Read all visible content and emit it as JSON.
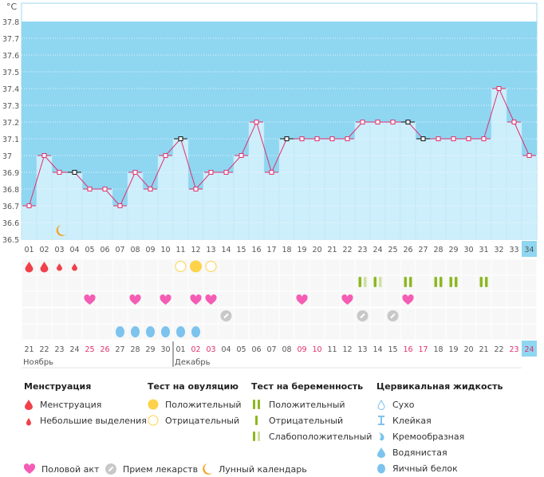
{
  "chart_data": {
    "type": "line",
    "unit": "°C",
    "ylim": [
      36.5,
      37.8
    ],
    "yticks": [
      "36.5",
      "36.6",
      "36.7",
      "36.8",
      "36.9",
      "37",
      "37.1",
      "37.2",
      "37.3",
      "37.4",
      "37.5",
      "37.6",
      "37.7",
      "37.8"
    ],
    "cycle_days": [
      "01",
      "02",
      "03",
      "04",
      "05",
      "06",
      "07",
      "08",
      "09",
      "10",
      "11",
      "12",
      "13",
      "14",
      "15",
      "16",
      "17",
      "18",
      "19",
      "20",
      "21",
      "22",
      "23",
      "24",
      "25",
      "26",
      "27",
      "28",
      "29",
      "30",
      "31",
      "32",
      "33",
      "34"
    ],
    "temperatures": [
      36.7,
      37.0,
      36.9,
      36.9,
      36.8,
      36.8,
      36.7,
      36.9,
      36.8,
      37.0,
      37.1,
      36.8,
      36.9,
      36.9,
      37.0,
      37.2,
      36.9,
      37.1,
      37.1,
      37.1,
      37.1,
      37.1,
      37.2,
      37.2,
      37.2,
      37.2,
      37.1,
      37.1,
      37.1,
      37.1,
      37.1,
      37.4,
      37.2,
      37.0
    ],
    "excluded_points": [
      4,
      11,
      18,
      26,
      27
    ],
    "current_day": 34,
    "dates": [
      "21",
      "22",
      "23",
      "24",
      "25",
      "26",
      "27",
      "28",
      "29",
      "30",
      "01",
      "02",
      "03",
      "04",
      "05",
      "06",
      "07",
      "08",
      "09",
      "10",
      "11",
      "12",
      "13",
      "14",
      "15",
      "16",
      "17",
      "18",
      "19",
      "20",
      "21",
      "22",
      "23",
      "24"
    ],
    "weekend_dates_idx": [
      4,
      5,
      11,
      12,
      18,
      19,
      25,
      26,
      32,
      33
    ],
    "months": [
      {
        "label": "Ноябрь",
        "start": 1
      },
      {
        "label": "Декабрь",
        "start": 11
      }
    ],
    "moon_day": 3,
    "menstruation": {
      "1": "heavy",
      "2": "heavy",
      "3": "light",
      "4": "light"
    },
    "ovulation_tests": {
      "11": "negative",
      "12": "positive",
      "13": "negative"
    },
    "pregnancy_tests": {
      "23": "weak",
      "24": "weak",
      "26": "positive",
      "28": "positive",
      "29": "positive",
      "31": "positive"
    },
    "intercourse": [
      5,
      8,
      10,
      12,
      13,
      19,
      22,
      26
    ],
    "medication": [
      14,
      23,
      25
    ],
    "cervical_fluid": {
      "7": "egg-white",
      "8": "egg-white",
      "9": "egg-white",
      "10": "egg-white",
      "11": "egg-white",
      "12": "egg-white"
    }
  },
  "legend": {
    "menstruation": {
      "title": "Менструация",
      "items": [
        "Менструация",
        "Небольшие выделения"
      ]
    },
    "ovulation": {
      "title": "Тест на овуляцию",
      "items": [
        "Положительный",
        "Отрицательный"
      ]
    },
    "pregnancy": {
      "title": "Тест на беременность",
      "items": [
        "Положительный",
        "Отрицательный",
        "Слабоположительный"
      ]
    },
    "fluid": {
      "title": "Цервикальная жидкость",
      "items": [
        "Сухо",
        "Клейкая",
        "Кремообразная",
        "Водянистая",
        "Яичный белок"
      ]
    },
    "other": [
      "Половой акт",
      "Прием лекарств",
      "Лунный календарь"
    ]
  },
  "colors": {
    "bg": "#8fd6f1",
    "bar": "#cdeefb",
    "line": "#e0306e",
    "blood": "#f0414b",
    "ovu": "#fdd34a",
    "preg": "#8cb820",
    "pregLight": "#cfe0a0",
    "heart": "#f55cb4",
    "pill": "#c8c8c8",
    "moon": "#f5a01c",
    "fluid": "#7cc3ee"
  }
}
